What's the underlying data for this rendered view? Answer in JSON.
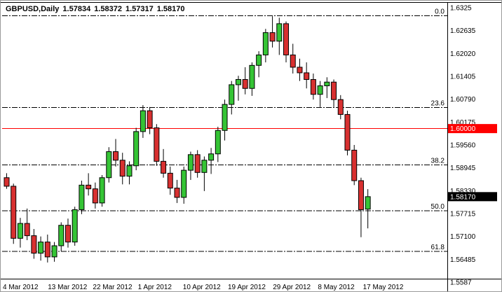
{
  "header": {
    "symbol_period": "GBPUSD,Daily",
    "open": "1.57834",
    "high": "1.58372",
    "low": "1.57317",
    "close": "1.58170"
  },
  "colors": {
    "background": "#ffffff",
    "text": "#000000",
    "wick": "#000000",
    "up": "#35C435",
    "down": "#D83030",
    "fib_line": "#000000",
    "red_line": "#FF0000",
    "tag_current_bg": "#000000",
    "tag_text": "#ffffff"
  },
  "scale": {
    "price_top": 1.6325,
    "y_top": 10,
    "price_bottom": 1.5587,
    "y_bottom": 402
  },
  "y_axis": {
    "labels": [
      {
        "text": "1.6325",
        "price": 1.6325
      },
      {
        "text": "1.62635",
        "price": 1.62635
      },
      {
        "text": "1.62020",
        "price": 1.6202
      },
      {
        "text": "1.61405",
        "price": 1.61405
      },
      {
        "text": "1.60790",
        "price": 1.6079
      },
      {
        "text": "1.60175",
        "price": 1.60175
      },
      {
        "text": "1.59560",
        "price": 1.5956
      },
      {
        "text": "1.58945",
        "price": 1.58945
      },
      {
        "text": "1.58330",
        "price": 1.5833
      },
      {
        "text": "1.57715",
        "price": 1.57715
      },
      {
        "text": "1.57100",
        "price": 1.571
      },
      {
        "text": "1.56485",
        "price": 1.56485
      },
      {
        "text": "1.5587",
        "price": 1.5587
      }
    ]
  },
  "x_axis": {
    "labels": [
      "4 Mar 2012",
      "13 Mar 2012",
      "22 Mar 2012",
      "1 Apr 2012",
      "10 Apr 2012",
      "19 Apr 2012",
      "29 Apr 2012",
      "8 May 2012",
      "17 May 2012"
    ]
  },
  "fib_levels": [
    {
      "label": "0.0",
      "price": 1.6303
    },
    {
      "label": "23.6",
      "price": 1.6057
    },
    {
      "label": "38.2",
      "price": 1.5902
    },
    {
      "label": "50.0",
      "price": 1.5779
    },
    {
      "label": "61.8",
      "price": 1.567
    }
  ],
  "hline": {
    "price": 1.6,
    "tag": "1.60000"
  },
  "current_price": {
    "price": 1.5817,
    "tag": "1.58170"
  },
  "chart_data": {
    "type": "candlestick",
    "title": "GBPUSD,Daily",
    "symbol": "GBPUSD",
    "timeframe": "Daily",
    "ylim": [
      1.5587,
      1.6325
    ],
    "grid": "off",
    "candles": [
      {
        "d": "5 Mar",
        "o": 1.5868,
        "h": 1.588,
        "l": 1.5838,
        "c": 1.5845
      },
      {
        "d": "6 Mar",
        "o": 1.5845,
        "h": 1.5852,
        "l": 1.569,
        "c": 1.5705
      },
      {
        "d": "7 Mar",
        "o": 1.5705,
        "h": 1.576,
        "l": 1.568,
        "c": 1.5745
      },
      {
        "d": "8 Mar",
        "o": 1.5745,
        "h": 1.5785,
        "l": 1.57,
        "c": 1.5712
      },
      {
        "d": "9 Mar",
        "o": 1.5712,
        "h": 1.573,
        "l": 1.565,
        "c": 1.5665
      },
      {
        "d": "12 Mar",
        "o": 1.5665,
        "h": 1.571,
        "l": 1.5645,
        "c": 1.5695
      },
      {
        "d": "13 Mar",
        "o": 1.5695,
        "h": 1.5715,
        "l": 1.564,
        "c": 1.5655
      },
      {
        "d": "14 Mar",
        "o": 1.5655,
        "h": 1.5695,
        "l": 1.5642,
        "c": 1.5685
      },
      {
        "d": "15 Mar",
        "o": 1.5685,
        "h": 1.5748,
        "l": 1.567,
        "c": 1.574
      },
      {
        "d": "16 Mar",
        "o": 1.574,
        "h": 1.5758,
        "l": 1.568,
        "c": 1.5695
      },
      {
        "d": "19 Mar",
        "o": 1.5695,
        "h": 1.579,
        "l": 1.5685,
        "c": 1.5782
      },
      {
        "d": "20 Mar",
        "o": 1.5782,
        "h": 1.586,
        "l": 1.577,
        "c": 1.5848
      },
      {
        "d": "21 Mar",
        "o": 1.5848,
        "h": 1.588,
        "l": 1.582,
        "c": 1.5838
      },
      {
        "d": "22 Mar",
        "o": 1.5838,
        "h": 1.5855,
        "l": 1.5785,
        "c": 1.58
      },
      {
        "d": "23 Mar",
        "o": 1.58,
        "h": 1.5875,
        "l": 1.579,
        "c": 1.5868
      },
      {
        "d": "26 Mar",
        "o": 1.5868,
        "h": 1.595,
        "l": 1.5855,
        "c": 1.5938
      },
      {
        "d": "27 Mar",
        "o": 1.5938,
        "h": 1.5972,
        "l": 1.5898,
        "c": 1.5915
      },
      {
        "d": "28 Mar",
        "o": 1.5915,
        "h": 1.5935,
        "l": 1.585,
        "c": 1.5872
      },
      {
        "d": "29 Mar",
        "o": 1.5872,
        "h": 1.5912,
        "l": 1.585,
        "c": 1.59
      },
      {
        "d": "30 Mar",
        "o": 1.59,
        "h": 1.6002,
        "l": 1.5888,
        "c": 1.5992
      },
      {
        "d": "2 Apr",
        "o": 1.5992,
        "h": 1.6063,
        "l": 1.5975,
        "c": 1.6048
      },
      {
        "d": "3 Apr",
        "o": 1.6048,
        "h": 1.6058,
        "l": 1.5985,
        "c": 1.6002
      },
      {
        "d": "4 Apr",
        "o": 1.6002,
        "h": 1.6012,
        "l": 1.59,
        "c": 1.5912
      },
      {
        "d": "5 Apr",
        "o": 1.5912,
        "h": 1.5945,
        "l": 1.5868,
        "c": 1.588
      },
      {
        "d": "9 Apr",
        "o": 1.588,
        "h": 1.5898,
        "l": 1.5822,
        "c": 1.584
      },
      {
        "d": "10 Apr",
        "o": 1.584,
        "h": 1.5862,
        "l": 1.58,
        "c": 1.5815
      },
      {
        "d": "11 Apr",
        "o": 1.5815,
        "h": 1.5898,
        "l": 1.5798,
        "c": 1.5888
      },
      {
        "d": "12 Apr",
        "o": 1.5888,
        "h": 1.5938,
        "l": 1.5862,
        "c": 1.593
      },
      {
        "d": "13 Apr",
        "o": 1.593,
        "h": 1.5942,
        "l": 1.5868,
        "c": 1.5882
      },
      {
        "d": "16 Apr",
        "o": 1.5882,
        "h": 1.5925,
        "l": 1.5832,
        "c": 1.5915
      },
      {
        "d": "17 Apr",
        "o": 1.5915,
        "h": 1.5948,
        "l": 1.5878,
        "c": 1.5932
      },
      {
        "d": "18 Apr",
        "o": 1.5932,
        "h": 1.6005,
        "l": 1.591,
        "c": 1.5995
      },
      {
        "d": "19 Apr",
        "o": 1.5995,
        "h": 1.6078,
        "l": 1.5968,
        "c": 1.6065
      },
      {
        "d": "20 Apr",
        "o": 1.6065,
        "h": 1.6128,
        "l": 1.6038,
        "c": 1.6118
      },
      {
        "d": "23 Apr",
        "o": 1.6118,
        "h": 1.6142,
        "l": 1.6075,
        "c": 1.6132
      },
      {
        "d": "24 Apr",
        "o": 1.6132,
        "h": 1.6165,
        "l": 1.6092,
        "c": 1.6108
      },
      {
        "d": "25 Apr",
        "o": 1.6108,
        "h": 1.6178,
        "l": 1.6088,
        "c": 1.617
      },
      {
        "d": "26 Apr",
        "o": 1.617,
        "h": 1.6208,
        "l": 1.6138,
        "c": 1.6198
      },
      {
        "d": "27 Apr",
        "o": 1.6198,
        "h": 1.6268,
        "l": 1.6178,
        "c": 1.6258
      },
      {
        "d": "30 Apr",
        "o": 1.6258,
        "h": 1.6302,
        "l": 1.6218,
        "c": 1.6235
      },
      {
        "d": "1 May",
        "o": 1.6235,
        "h": 1.6298,
        "l": 1.6198,
        "c": 1.6282
      },
      {
        "d": "2 May",
        "o": 1.6282,
        "h": 1.6288,
        "l": 1.6178,
        "c": 1.6198
      },
      {
        "d": "3 May",
        "o": 1.6198,
        "h": 1.6228,
        "l": 1.6148,
        "c": 1.6165
      },
      {
        "d": "4 May",
        "o": 1.6165,
        "h": 1.6188,
        "l": 1.6128,
        "c": 1.615
      },
      {
        "d": "7 May",
        "o": 1.615,
        "h": 1.6178,
        "l": 1.6108,
        "c": 1.6132
      },
      {
        "d": "8 May",
        "o": 1.6132,
        "h": 1.6148,
        "l": 1.6078,
        "c": 1.6092
      },
      {
        "d": "9 May",
        "o": 1.6092,
        "h": 1.6128,
        "l": 1.6058,
        "c": 1.6115
      },
      {
        "d": "10 May",
        "o": 1.6115,
        "h": 1.6138,
        "l": 1.6082,
        "c": 1.6125
      },
      {
        "d": "11 May",
        "o": 1.6125,
        "h": 1.6132,
        "l": 1.6058,
        "c": 1.6078
      },
      {
        "d": "14 May",
        "o": 1.6078,
        "h": 1.609,
        "l": 1.6025,
        "c": 1.6038
      },
      {
        "d": "15 May",
        "o": 1.6038,
        "h": 1.6048,
        "l": 1.5928,
        "c": 1.5942
      },
      {
        "d": "16 May",
        "o": 1.5942,
        "h": 1.5956,
        "l": 1.5848,
        "c": 1.586
      },
      {
        "d": "17 May",
        "o": 1.586,
        "h": 1.5868,
        "l": 1.5708,
        "c": 1.5782
      },
      {
        "d": "18 May",
        "o": 1.57834,
        "h": 1.58372,
        "l": 1.57317,
        "c": 1.5817
      }
    ]
  }
}
